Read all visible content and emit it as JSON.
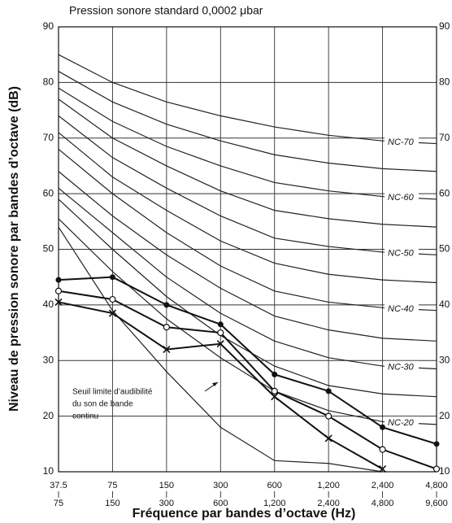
{
  "chart_data": {
    "type": "line",
    "top_label": "Pression sonore standard 0,0002 μbar",
    "y_label": "Niveau de pression sonore par bandes d’octave (dB)",
    "x_label": "Fréquence par bandes d’octave (Hz)",
    "annotation": [
      "Seuil limite d’audibilité",
      "du son de bande",
      "continu"
    ],
    "categories": [
      [
        "37.5",
        "75"
      ],
      [
        "75",
        "150"
      ],
      [
        "150",
        "300"
      ],
      [
        "300",
        "600"
      ],
      [
        "600",
        "1,200"
      ],
      [
        "1,200",
        "2,400"
      ],
      [
        "2,400",
        "4,800"
      ],
      [
        "4,800",
        "9,600"
      ]
    ],
    "ylim": [
      10,
      90
    ],
    "yticks": [
      10,
      20,
      30,
      40,
      50,
      60,
      70,
      80,
      90
    ],
    "grid": true,
    "nc_curves": [
      {
        "label": "NC-70",
        "values": [
          85,
          80,
          76.5,
          74,
          72,
          70.5,
          69.5,
          69
        ]
      },
      {
        "values": [
          82,
          76.5,
          72.5,
          69.5,
          67,
          65.5,
          64.5,
          64
        ]
      },
      {
        "label": "NC-60",
        "values": [
          79,
          73,
          68.5,
          65,
          62,
          60.5,
          59.5,
          59
        ]
      },
      {
        "values": [
          77,
          70,
          65,
          60.5,
          57,
          55.5,
          54.5,
          54
        ]
      },
      {
        "label": "NC-50",
        "values": [
          74,
          66.5,
          61,
          56,
          52,
          50.5,
          49.5,
          49
        ]
      },
      {
        "values": [
          71,
          63,
          57,
          51.5,
          47.5,
          45.5,
          44.5,
          44
        ]
      },
      {
        "label": "NC-40",
        "values": [
          68,
          60,
          53,
          47,
          42.5,
          40.5,
          39.5,
          39
        ]
      },
      {
        "values": [
          64,
          56,
          49,
          43,
          38,
          35.5,
          34,
          33.5
        ]
      },
      {
        "label": "NC-30",
        "values": [
          61,
          53,
          45,
          38.5,
          33.5,
          30.5,
          29,
          28.5
        ]
      },
      {
        "values": [
          59,
          50,
          41.5,
          34.5,
          29,
          25.5,
          24,
          23.5
        ]
      },
      {
        "label": "NC-20",
        "values": [
          55.5,
          46,
          37.5,
          30.5,
          24.5,
          21,
          19,
          18.5
        ]
      }
    ],
    "threshold": [
      54,
      39,
      28,
      18,
      12,
      11.5,
      10,
      null
    ],
    "series": [
      {
        "marker": "dot",
        "color": "#111111",
        "values": [
          44.5,
          45,
          40,
          36.5,
          27.5,
          24.5,
          18,
          15
        ]
      },
      {
        "marker": "circle",
        "color": "#111111",
        "values": [
          42.5,
          41,
          36,
          35,
          24.5,
          20,
          14,
          10.5
        ]
      },
      {
        "marker": "cross",
        "color": "#111111",
        "values": [
          40.5,
          38.5,
          32,
          33,
          23.5,
          16,
          10.5,
          null
        ]
      }
    ]
  }
}
